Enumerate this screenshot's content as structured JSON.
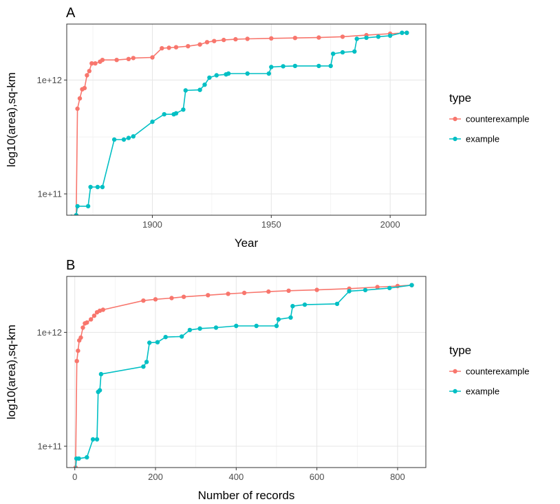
{
  "chart_data": [
    {
      "type": "line",
      "panel_label": "A",
      "xlabel": "Year",
      "ylabel": "log10(area),sq-km",
      "xlim": [
        1864,
        2015
      ],
      "ylim": [
        65000000000,
        3100000000000
      ],
      "y_scale": "log",
      "xticks": [
        1900,
        1950,
        2000
      ],
      "xtick_labels": [
        "1900",
        "1950",
        "2000"
      ],
      "yticks": [
        100000000000,
        1000000000000
      ],
      "ytick_labels": [
        "1e+11",
        "1e+12"
      ],
      "grid": true,
      "legend_title": "type",
      "legend_position": "right",
      "series": [
        {
          "name": "counterexample",
          "color": "#F8766D",
          "points": [
            [
              1868,
              65000000000.0
            ],
            [
              1868.5,
              560000000000.0
            ],
            [
              1869.5,
              690000000000.0
            ],
            [
              1870.5,
              830000000000.0
            ],
            [
              1871.5,
              850000000000.0
            ],
            [
              1872.5,
              1100000000000.0
            ],
            [
              1873.5,
              1200000000000.0
            ],
            [
              1874.5,
              1400000000000.0
            ],
            [
              1876,
              1400000000000.0
            ],
            [
              1878,
              1450000000000.0
            ],
            [
              1879,
              1500000000000.0
            ],
            [
              1885,
              1500000000000.0
            ],
            [
              1890,
              1530000000000.0
            ],
            [
              1892,
              1560000000000.0
            ],
            [
              1900,
              1580000000000.0
            ],
            [
              1904,
              1900000000000.0
            ],
            [
              1907,
              1920000000000.0
            ],
            [
              1910,
              1940000000000.0
            ],
            [
              1915,
              1980000000000.0
            ],
            [
              1920,
              2050000000000.0
            ],
            [
              1923,
              2150000000000.0
            ],
            [
              1926,
              2200000000000.0
            ],
            [
              1930,
              2250000000000.0
            ],
            [
              1935,
              2280000000000.0
            ],
            [
              1940,
              2300000000000.0
            ],
            [
              1950,
              2320000000000.0
            ],
            [
              1960,
              2340000000000.0
            ],
            [
              1970,
              2360000000000.0
            ],
            [
              1980,
              2400000000000.0
            ],
            [
              1990,
              2480000000000.0
            ],
            [
              2000,
              2550000000000.0
            ],
            [
              2007,
              2600000000000.0
            ]
          ]
        },
        {
          "name": "example",
          "color": "#00BFC4",
          "points": [
            [
              1866,
              63000000000.0
            ],
            [
              1868,
              65000000000.0
            ],
            [
              1868.5,
              78000000000.0
            ],
            [
              1873,
              78000000000.0
            ],
            [
              1874,
              115000000000.0
            ],
            [
              1877,
              115000000000.0
            ],
            [
              1879,
              115000000000.0
            ],
            [
              1884,
              300000000000.0
            ],
            [
              1888,
              300000000000.0
            ],
            [
              1890,
              310000000000.0
            ],
            [
              1892,
              320000000000.0
            ],
            [
              1900,
              430000000000.0
            ],
            [
              1905,
              500000000000.0
            ],
            [
              1909,
              500000000000.0
            ],
            [
              1910,
              510000000000.0
            ],
            [
              1913,
              550000000000.0
            ],
            [
              1914,
              810000000000.0
            ],
            [
              1920,
              820000000000.0
            ],
            [
              1922,
              910000000000.0
            ],
            [
              1924,
              1050000000000.0
            ],
            [
              1927,
              1100000000000.0
            ],
            [
              1931,
              1120000000000.0
            ],
            [
              1932,
              1140000000000.0
            ],
            [
              1940,
              1140000000000.0
            ],
            [
              1949,
              1140000000000.0
            ],
            [
              1950,
              1300000000000.0
            ],
            [
              1955,
              1320000000000.0
            ],
            [
              1960,
              1330000000000.0
            ],
            [
              1970,
              1330000000000.0
            ],
            [
              1975,
              1330000000000.0
            ],
            [
              1976,
              1700000000000.0
            ],
            [
              1980,
              1750000000000.0
            ],
            [
              1985,
              1780000000000.0
            ],
            [
              1986,
              2300000000000.0
            ],
            [
              1990,
              2350000000000.0
            ],
            [
              1995,
              2400000000000.0
            ],
            [
              2000,
              2450000000000.0
            ],
            [
              2005,
              2600000000000.0
            ],
            [
              2007,
              2600000000000.0
            ]
          ]
        }
      ]
    },
    {
      "type": "line",
      "panel_label": "B",
      "xlabel": "Number of records",
      "ylabel": "log10(area),sq-km",
      "xlim": [
        -20,
        870
      ],
      "ylim": [
        65000000000,
        3100000000000
      ],
      "y_scale": "log",
      "xticks": [
        0,
        200,
        400,
        600,
        800
      ],
      "xtick_labels": [
        "0",
        "200",
        "400",
        "600",
        "800"
      ],
      "yticks": [
        100000000000,
        1000000000000
      ],
      "ytick_labels": [
        "1e+11",
        "1e+12"
      ],
      "grid": true,
      "legend_title": "type",
      "legend_position": "right",
      "series": [
        {
          "name": "counterexample",
          "color": "#F8766D",
          "points": [
            [
              2,
              65000000000.0
            ],
            [
              5,
              560000000000.0
            ],
            [
              8,
              690000000000.0
            ],
            [
              11,
              850000000000.0
            ],
            [
              15,
              900000000000.0
            ],
            [
              20,
              1100000000000.0
            ],
            [
              25,
              1200000000000.0
            ],
            [
              30,
              1220000000000.0
            ],
            [
              40,
              1300000000000.0
            ],
            [
              48,
              1400000000000.0
            ],
            [
              55,
              1500000000000.0
            ],
            [
              62,
              1550000000000.0
            ],
            [
              70,
              1580000000000.0
            ],
            [
              170,
              1900000000000.0
            ],
            [
              200,
              1950000000000.0
            ],
            [
              240,
              2000000000000.0
            ],
            [
              270,
              2050000000000.0
            ],
            [
              330,
              2120000000000.0
            ],
            [
              380,
              2180000000000.0
            ],
            [
              420,
              2220000000000.0
            ],
            [
              480,
              2280000000000.0
            ],
            [
              530,
              2320000000000.0
            ],
            [
              600,
              2360000000000.0
            ],
            [
              680,
              2420000000000.0
            ],
            [
              750,
              2500000000000.0
            ],
            [
              800,
              2550000000000.0
            ],
            [
              835,
              2600000000000.0
            ]
          ]
        },
        {
          "name": "example",
          "color": "#00BFC4",
          "points": [
            [
              2,
              63000000000.0
            ],
            [
              4,
              78000000000.0
            ],
            [
              10,
              78000000000.0
            ],
            [
              30,
              80000000000.0
            ],
            [
              45,
              115000000000.0
            ],
            [
              55,
              115000000000.0
            ],
            [
              58,
              300000000000.0
            ],
            [
              62,
              310000000000.0
            ],
            [
              65,
              430000000000.0
            ],
            [
              170,
              500000000000.0
            ],
            [
              178,
              550000000000.0
            ],
            [
              185,
              810000000000.0
            ],
            [
              205,
              820000000000.0
            ],
            [
              225,
              910000000000.0
            ],
            [
              265,
              920000000000.0
            ],
            [
              285,
              1050000000000.0
            ],
            [
              310,
              1080000000000.0
            ],
            [
              350,
              1100000000000.0
            ],
            [
              400,
              1140000000000.0
            ],
            [
              450,
              1140000000000.0
            ],
            [
              500,
              1140000000000.0
            ],
            [
              505,
              1300000000000.0
            ],
            [
              535,
              1350000000000.0
            ],
            [
              540,
              1700000000000.0
            ],
            [
              570,
              1750000000000.0
            ],
            [
              650,
              1780000000000.0
            ],
            [
              680,
              2300000000000.0
            ],
            [
              720,
              2350000000000.0
            ],
            [
              780,
              2450000000000.0
            ],
            [
              835,
              2600000000000.0
            ]
          ]
        }
      ]
    }
  ]
}
